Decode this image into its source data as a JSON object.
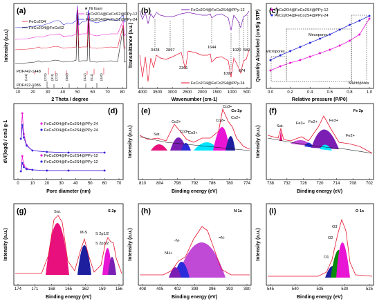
{
  "colors": {
    "red": "#e8112d",
    "blue": "#2b2bd9",
    "magenta": "#e815d4",
    "purple": "#7b1fb4",
    "black": "#111111",
    "pink": "#f06ab7",
    "hot_pink": "#e8107d",
    "navy": "#1d1f9e",
    "cyan": "#00e5ff",
    "green": "#0a8a0a",
    "violet": "#c04ad6"
  },
  "chart_data": [
    {
      "panel": "(a)",
      "type": "line",
      "xlabel": "2 Theta / degree",
      "ylabel": "Intensity (a.u.)",
      "xlim": [
        10,
        80
      ],
      "x_ticks": [
        "10",
        "20",
        "30",
        "40",
        "50",
        "60",
        "70",
        "80"
      ],
      "legend": [
        {
          "name": "Ni foam",
          "marker": "★",
          "color": "#e8112d"
        },
        {
          "name": "FeCo2O4@FeCoS2@PPy-12"
        },
        {
          "name": "FeCo2O4@FeCoS2@PPy-24"
        },
        {
          "name": "FeCo2O4"
        },
        {
          "name": "FeCo2O4@FeCoS2"
        }
      ],
      "reference_cards": [
        "PDF#42-1448",
        "PDF#22-1086"
      ],
      "hkl": [
        "(111)",
        "(220)",
        "(311)",
        "(222)",
        "(400)",
        "(422)",
        "(511)",
        "(440)"
      ]
    },
    {
      "panel": "(b)",
      "type": "line",
      "xlabel": "Wavenumber (cm-1)",
      "ylabel": "Transmittance (a.u.)",
      "xlim": [
        4000,
        500
      ],
      "x_ticks": [
        "4000",
        "3500",
        "3000",
        "2500",
        "2000",
        "1500",
        "1000",
        "500"
      ],
      "series": [
        {
          "name": "FeCo2O4@FeCo2S4@PPy-12"
        },
        {
          "name": "FeCo2O4@FeCo2S4@PPy-24"
        }
      ],
      "peaks": [
        "3428",
        "2897",
        "2361",
        "1644",
        "1097",
        "1020",
        "674",
        "580"
      ]
    },
    {
      "panel": "(c)",
      "type": "line",
      "xlabel": "Relative pressure (P/P0)",
      "ylabel": "Quantity Absorbed (cm3/g STP)",
      "xlim": [
        0,
        1
      ],
      "x_ticks": [
        "0.0",
        "0.2",
        "0.4",
        "0.6",
        "0.8",
        "1.0"
      ],
      "series": [
        {
          "name": "FeCo2O4@FeCo2S4@PPy-12",
          "x": [
            0.0,
            0.1,
            0.2,
            0.3,
            0.4,
            0.5,
            0.6,
            0.7,
            0.8,
            0.9,
            1.0
          ],
          "y": [
            0.2,
            0.26,
            0.31,
            0.35,
            0.4,
            0.45,
            0.5,
            0.56,
            0.63,
            0.72,
            0.95
          ]
        },
        {
          "name": "FeCo2O4@FeCo2S4@PPy-24",
          "x": [
            0.0,
            0.1,
            0.2,
            0.3,
            0.4,
            0.5,
            0.6,
            0.7,
            0.8,
            0.9,
            1.0
          ],
          "y": [
            0.35,
            0.42,
            0.48,
            0.54,
            0.6,
            0.66,
            0.72,
            0.79,
            0.86,
            0.92,
            0.99
          ]
        }
      ],
      "annotations": [
        "Mesopores",
        "Micropores",
        "Macropores"
      ]
    },
    {
      "panel": "(d)",
      "type": "line",
      "xlabel": "Pore diameter (nm)",
      "ylabel": "dV/(logd) / cm3 g-1",
      "xlim": [
        0,
        70
      ],
      "x_ticks": [
        "0",
        "10",
        "20",
        "30",
        "40",
        "50",
        "60",
        "70"
      ],
      "series": [
        {
          "name": "FeCo2O4@FeCo2S4@PPy-24",
          "x": [
            2,
            3,
            4,
            6,
            10,
            20,
            35,
            60
          ],
          "y": [
            0.55,
            0.92,
            0.62,
            0.46,
            0.38,
            0.36,
            0.35,
            0.35
          ]
        },
        {
          "name": "FeCo2O4@FeCo2S4@PPy-24",
          "x": [
            2,
            3,
            4,
            6,
            10,
            20,
            35,
            60
          ],
          "y": [
            0.55,
            0.75,
            0.57,
            0.45,
            0.38,
            0.36,
            0.35,
            0.35
          ]
        },
        {
          "name": "FeCo2O4@FeCo2S4@PPy-12",
          "x": [
            2,
            3,
            4,
            6,
            10,
            20,
            35,
            60
          ],
          "y": [
            0.08,
            0.3,
            0.17,
            0.12,
            0.1,
            0.09,
            0.09,
            0.09
          ]
        },
        {
          "name": "FeCo2O4@FeCo2S4@PPy-12",
          "x": [
            2,
            3,
            4,
            6,
            10,
            20,
            35,
            60
          ],
          "y": [
            0.08,
            0.2,
            0.14,
            0.11,
            0.1,
            0.09,
            0.09,
            0.09
          ]
        }
      ]
    },
    {
      "panel": "(e)",
      "type": "line",
      "title": "Co 2p",
      "xlabel": "Binding energy (eV)",
      "ylabel": "Intensity (a.u.)",
      "x_ticks": [
        "810",
        "804",
        "798",
        "792",
        "786",
        "780",
        "774"
      ],
      "peaks": [
        "Sat.",
        "Co2+",
        "Co3+",
        "Co3+",
        "Co2+",
        "Co3+",
        "Co2+"
      ]
    },
    {
      "panel": "(f)",
      "type": "line",
      "title": "Fe 2p",
      "xlabel": "Binding energy (eV)",
      "ylabel": "Intensity (a.u.)",
      "x_ticks": [
        "738",
        "732",
        "726",
        "720",
        "714",
        "708",
        "702"
      ],
      "peaks": [
        "Sat.",
        "Fe3+",
        "Fe2+",
        "Fe3+",
        "Fe2+"
      ]
    },
    {
      "panel": "(g)",
      "type": "line",
      "title": "S 2p",
      "xlabel": "Binding energy (eV)",
      "ylabel": "Intensity (a.u.)",
      "x_ticks": [
        "174",
        "171",
        "168",
        "165",
        "162",
        "159",
        "156"
      ],
      "peaks": [
        "Sat.",
        "M-S",
        "S 2p1/2",
        "S 2p3/2"
      ]
    },
    {
      "panel": "(h)",
      "type": "line",
      "title": "N 1s",
      "xlabel": "Binding energy (eV)",
      "ylabel": "Intensity (a.u.)",
      "x_ticks": [
        "408",
        "405",
        "402",
        "399",
        "396",
        "393",
        "390"
      ],
      "peaks": [
        "NH+",
        "-N-",
        "=N-"
      ]
    },
    {
      "panel": "(i)",
      "type": "line",
      "title": "O 1s",
      "xlabel": "Binding energy (eV)",
      "ylabel": "Intensity (a.u.)",
      "x_ticks": [
        "545",
        "540",
        "535",
        "530",
        "525"
      ],
      "peaks": [
        "O1",
        "O2",
        "O3"
      ]
    }
  ]
}
